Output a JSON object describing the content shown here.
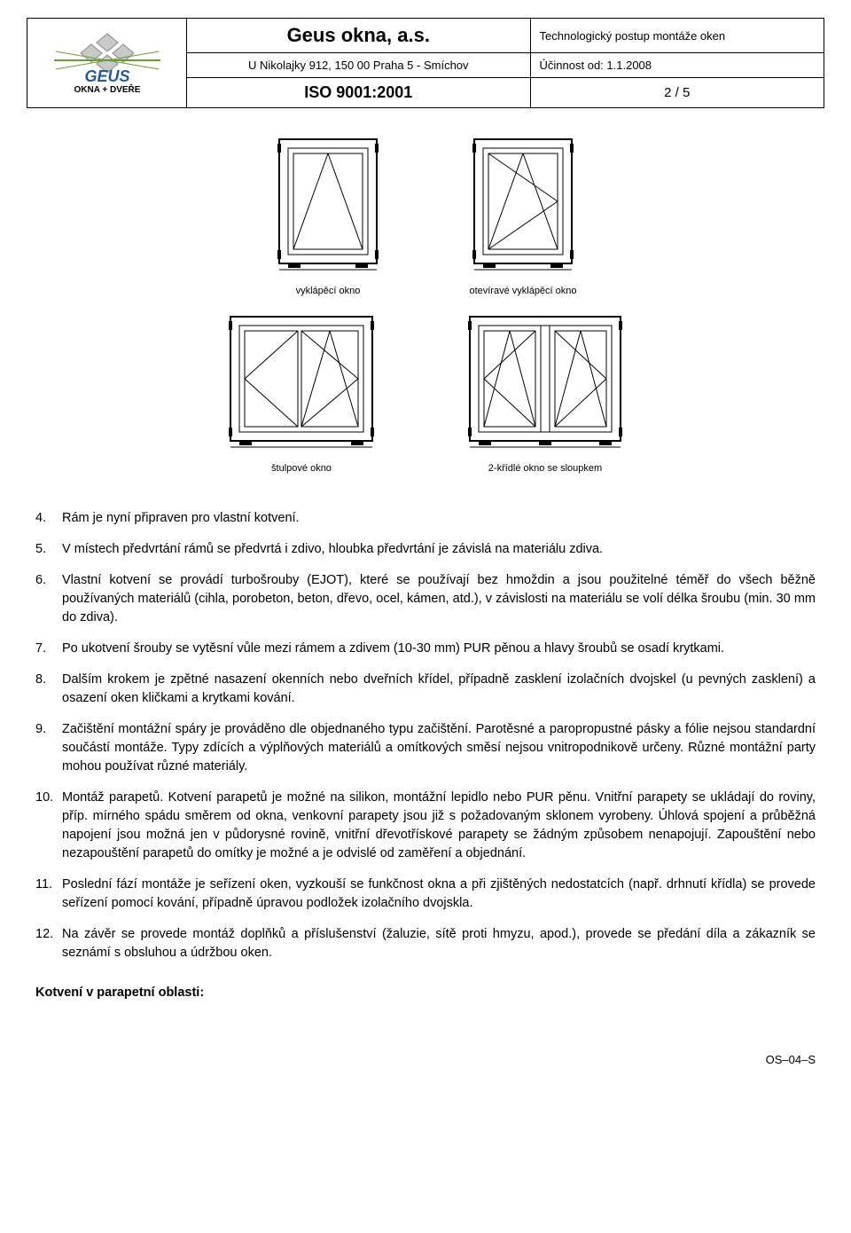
{
  "header": {
    "company": "Geus okna, a.s.",
    "address": "U Nikolajky 912, 150 00 Praha 5 - Smíchov",
    "iso": "ISO 9001:2001",
    "doc_type": "Technologický postup montáže oken",
    "validity": "Účinnost od: 1.1.2008",
    "page": "2 / 5",
    "logo_text_top": "GEUS",
    "logo_text_bottom": "OKNA + DVEŘE"
  },
  "diagrams": {
    "row1": [
      {
        "label": "vyklápěcí okno"
      },
      {
        "label": "otevíravé vyklápěcí okno"
      }
    ],
    "row2": [
      {
        "label": "štulpové okno"
      },
      {
        "label": "2-křídlé okno se sloupkem"
      }
    ],
    "colors": {
      "stroke": "#000000",
      "fill": "#ffffff",
      "bracket": "#000000"
    }
  },
  "list": {
    "items": [
      {
        "n": "4.",
        "text": "Rám je nyní připraven pro vlastní kotvení."
      },
      {
        "n": "5.",
        "text": "V místech předvrtání rámů se předvrtá i zdivo, hloubka předvrtání je závislá na materiálu zdiva."
      },
      {
        "n": "6.",
        "text": "Vlastní kotvení se provádí turbošrouby (EJOT), které se používají bez hmoždin a jsou použitelné téměř do všech běžně používaných materiálů (cihla, porobeton, beton, dřevo, ocel, kámen, atd.), v závislosti na materiálu se volí délka šroubu (min. 30 mm do zdiva)."
      },
      {
        "n": "7.",
        "text": "Po ukotvení šrouby se vytěsní vůle mezi rámem a zdivem (10-30 mm) PUR pěnou a hlavy šroubů se osadí krytkami."
      },
      {
        "n": "8.",
        "text": "Dalším krokem je zpětné nasazení okenních nebo dveřních křídel, případně zasklení izolačních dvojskel (u pevných zasklení) a osazení oken kličkami a krytkami kování."
      },
      {
        "n": "9.",
        "text": "Začištění montážní spáry je prováděno dle objednaného typu začištění. Parotěsné a paropropustné pásky a fólie nejsou standardní součástí montáže. Typy zdících a výplňových materiálů a omítkových směsí nejsou vnitropodnikově určeny. Různé montážní party mohou používat různé materiály."
      },
      {
        "n": "10.",
        "text": "Montáž parapetů. Kotvení parapetů je možné na silikon, montážní lepidlo nebo PUR pěnu. Vnitřní parapety se ukládají do roviny, příp. mírného spádu směrem od okna, venkovní parapety jsou již s požadovaným sklonem vyrobeny. Úhlová spojení a průběžná napojení jsou možná jen v půdorysné rovině, vnitřní dřevotřískové parapety se žádným způsobem nenapojují. Zapouštění nebo nezapouštění parapetů do omítky je možné a je odvislé od zaměření a objednání."
      },
      {
        "n": "11.",
        "text": "Poslední fází montáže je seřízení oken, vyzkouší se funkčnost okna a při zjištěných nedostatcích (např. drhnutí křídla) se provede seřízení pomocí kování, případně úpravou podložek izolačního dvojskla."
      },
      {
        "n": "12.",
        "text": "Na závěr se provede montáž doplňků a příslušenství (žaluzie, sítě proti hmyzu, apod.), provede se předání díla a zákazník se seznámí s obsluhou a údržbou oken."
      }
    ]
  },
  "section_title": "Kotvení v parapetní oblasti:",
  "footer_code": "OS–04–S"
}
